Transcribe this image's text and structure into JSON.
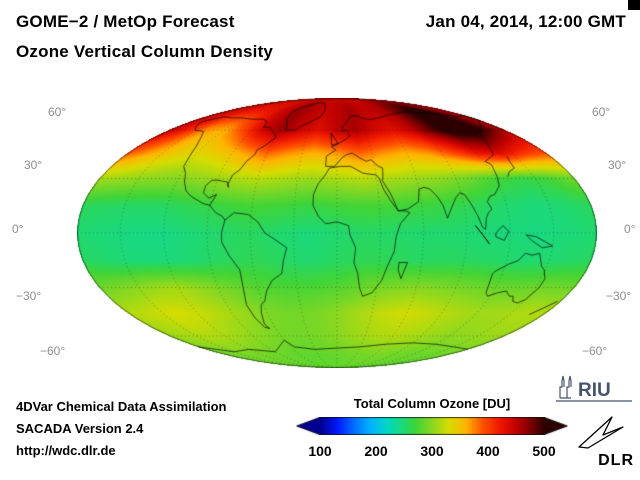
{
  "header": {
    "title_line1": "GOME−2 / MetOp Forecast",
    "title_line2": "Ozone Vertical Column Density",
    "datetime": "Jan 04, 2014, 12:00 GMT"
  },
  "map": {
    "lat_labels": [
      {
        "text": "60°"
      },
      {
        "text": "30°"
      },
      {
        "text": "0°"
      },
      {
        "text": "−30°"
      },
      {
        "text": "−60°"
      }
    ]
  },
  "colorbar": {
    "title": "Total Column Ozone [DU]",
    "ticks": [
      "100",
      "200",
      "300",
      "400",
      "500"
    ]
  },
  "footer": {
    "line1": "4DVar Chemical Data Assimilation",
    "line2": "SACADA Version 2.4",
    "line3": "http://wdc.dlr.de"
  },
  "logos": {
    "riu_text": "RIU",
    "dlr_text": "DLR"
  },
  "chart_data": {
    "type": "heatmap",
    "title": "GOME−2 / MetOp Forecast — Ozone Vertical Column Density",
    "units": "DU",
    "projection": "mollweide",
    "colorbar_label": "Total Column Ozone [DU]",
    "value_range": [
      100,
      500
    ],
    "lat_gridlines_deg": [
      60,
      30,
      0,
      -30,
      -60
    ],
    "colormap": [
      [
        100,
        "#000090"
      ],
      [
        130,
        "#0018ff"
      ],
      [
        160,
        "#0070ff"
      ],
      [
        190,
        "#00b4ff"
      ],
      [
        220,
        "#00d8c0"
      ],
      [
        250,
        "#20d870"
      ],
      [
        270,
        "#40d438"
      ],
      [
        300,
        "#8cd820"
      ],
      [
        330,
        "#d8dc00"
      ],
      [
        360,
        "#ffb400"
      ],
      [
        390,
        "#ff5000"
      ],
      [
        420,
        "#f01800"
      ],
      [
        450,
        "#c00000"
      ],
      [
        475,
        "#7c0000"
      ],
      [
        500,
        "#2c0000"
      ]
    ],
    "grid": {
      "lats": [
        90,
        75,
        60,
        45,
        30,
        15,
        0,
        -15,
        -30,
        -45,
        -60,
        -75,
        -90
      ],
      "lons": [
        -180,
        -160,
        -140,
        -120,
        -100,
        -80,
        -60,
        -40,
        -20,
        0,
        20,
        40,
        60,
        80,
        100,
        120,
        140,
        160,
        180
      ],
      "values": [
        [
          445,
          445,
          445,
          445,
          445,
          445,
          445,
          445,
          445,
          445,
          445,
          445,
          445,
          445,
          445,
          445,
          445,
          445,
          445
        ],
        [
          450,
          435,
          425,
          420,
          430,
          450,
          465,
          455,
          445,
          450,
          460,
          450,
          450,
          460,
          485,
          505,
          505,
          475,
          450
        ],
        [
          450,
          415,
          370,
          360,
          395,
          440,
          465,
          445,
          430,
          450,
          460,
          440,
          430,
          450,
          485,
          515,
          520,
          490,
          450
        ],
        [
          390,
          365,
          345,
          335,
          345,
          365,
          385,
          370,
          360,
          370,
          385,
          370,
          360,
          370,
          395,
          425,
          435,
          405,
          390
        ],
        [
          310,
          305,
          300,
          298,
          304,
          312,
          318,
          312,
          306,
          312,
          318,
          312,
          306,
          300,
          288,
          272,
          264,
          272,
          290
        ],
        [
          258,
          255,
          254,
          256,
          262,
          268,
          272,
          270,
          266,
          270,
          273,
          271,
          268,
          264,
          258,
          250,
          246,
          250,
          258
        ],
        [
          250,
          246,
          243,
          243,
          247,
          252,
          256,
          250,
          246,
          250,
          254,
          252,
          250,
          250,
          248,
          246,
          244,
          246,
          250
        ],
        [
          256,
          250,
          246,
          246,
          250,
          256,
          260,
          255,
          250,
          255,
          260,
          258,
          255,
          256,
          254,
          252,
          250,
          252,
          256
        ],
        [
          288,
          295,
          305,
          310,
          300,
          288,
          278,
          274,
          274,
          278,
          286,
          294,
          298,
          294,
          290,
          286,
          286,
          290,
          288
        ],
        [
          315,
          322,
          330,
          325,
          315,
          305,
          295,
          290,
          292,
          300,
          312,
          322,
          328,
          322,
          315,
          308,
          310,
          315,
          315
        ],
        [
          305,
          310,
          315,
          312,
          305,
          298,
          292,
          290,
          292,
          298,
          306,
          312,
          315,
          312,
          306,
          300,
          302,
          306,
          305
        ],
        [
          288,
          290,
          292,
          290,
          288,
          285,
          283,
          282,
          283,
          285,
          288,
          290,
          292,
          290,
          288,
          286,
          286,
          288,
          288
        ],
        [
          282,
          282,
          282,
          282,
          282,
          282,
          282,
          282,
          282,
          282,
          282,
          282,
          282,
          282,
          282,
          282,
          282,
          282,
          282
        ]
      ]
    },
    "coastlines": [
      [
        [
          -165,
          66
        ],
        [
          -155,
          70
        ],
        [
          -140,
          69
        ],
        [
          -125,
          69
        ],
        [
          -110,
          68
        ],
        [
          -95,
          68
        ],
        [
          -85,
          66
        ],
        [
          -82,
          62
        ],
        [
          -75,
          62
        ],
        [
          -70,
          60
        ],
        [
          -65,
          58
        ],
        [
          -60,
          55
        ],
        [
          -65,
          50
        ],
        [
          -70,
          47
        ],
        [
          -70,
          44
        ],
        [
          -74,
          40
        ],
        [
          -76,
          35
        ],
        [
          -80,
          32
        ],
        [
          -81,
          27
        ],
        [
          -80,
          25
        ],
        [
          -82,
          28
        ],
        [
          -90,
          29
        ],
        [
          -94,
          29
        ],
        [
          -97,
          26
        ],
        [
          -97,
          22
        ],
        [
          -92,
          19
        ],
        [
          -87,
          21
        ],
        [
          -90,
          15
        ],
        [
          -95,
          16
        ],
        [
          -105,
          20
        ],
        [
          -110,
          23
        ],
        [
          -114,
          28
        ],
        [
          -117,
          33
        ],
        [
          -122,
          37
        ],
        [
          -124,
          43
        ],
        [
          -127,
          49
        ],
        [
          -132,
          54
        ],
        [
          -140,
          59
        ],
        [
          -152,
          60
        ],
        [
          -160,
          63
        ],
        [
          -165,
          66
        ]
      ],
      [
        [
          -90,
          15
        ],
        [
          -85,
          11
        ],
        [
          -80,
          9
        ],
        [
          -78,
          7
        ]
      ],
      [
        [
          -55,
          60
        ],
        [
          -45,
          60
        ],
        [
          -40,
          63
        ],
        [
          -30,
          67
        ],
        [
          -22,
          70
        ],
        [
          -20,
          76
        ],
        [
          -30,
          82
        ],
        [
          -45,
          83
        ],
        [
          -58,
          80
        ],
        [
          -68,
          78
        ],
        [
          -70,
          74
        ],
        [
          -65,
          68
        ],
        [
          -58,
          64
        ],
        [
          -55,
          60
        ]
      ],
      [
        [
          -78,
          7
        ],
        [
          -72,
          11
        ],
        [
          -62,
          10
        ],
        [
          -55,
          6
        ],
        [
          -50,
          0
        ],
        [
          -44,
          -3
        ],
        [
          -35,
          -8
        ],
        [
          -38,
          -15
        ],
        [
          -40,
          -22
        ],
        [
          -48,
          -26
        ],
        [
          -54,
          -32
        ],
        [
          -58,
          -38
        ],
        [
          -62,
          -40
        ],
        [
          -65,
          -45
        ],
        [
          -68,
          -52
        ],
        [
          -66,
          -55
        ],
        [
          -70,
          -54
        ],
        [
          -73,
          -48
        ],
        [
          -74,
          -40
        ],
        [
          -71,
          -30
        ],
        [
          -70,
          -20
        ],
        [
          -76,
          -12
        ],
        [
          -80,
          -5
        ],
        [
          -80,
          0
        ],
        [
          -78,
          7
        ]
      ],
      [
        [
          -6,
          36
        ],
        [
          3,
          37
        ],
        [
          11,
          37
        ],
        [
          20,
          33
        ],
        [
          30,
          32
        ],
        [
          32,
          30
        ],
        [
          34,
          24
        ],
        [
          38,
          18
        ],
        [
          43,
          12
        ],
        [
          48,
          12
        ],
        [
          51,
          11
        ],
        [
          44,
          5
        ],
        [
          41,
          -2
        ],
        [
          40,
          -10
        ],
        [
          36,
          -18
        ],
        [
          33,
          -26
        ],
        [
          27,
          -33
        ],
        [
          20,
          -35
        ],
        [
          17,
          -30
        ],
        [
          15,
          -22
        ],
        [
          12,
          -16
        ],
        [
          13,
          -8
        ],
        [
          9,
          -1
        ],
        [
          8,
          4
        ],
        [
          0,
          6
        ],
        [
          -8,
          5
        ],
        [
          -13,
          9
        ],
        [
          -17,
          15
        ],
        [
          -17,
          21
        ],
        [
          -14,
          27
        ],
        [
          -9,
          32
        ],
        [
          -6,
          36
        ]
      ],
      [
        [
          -9,
          43
        ],
        [
          -9,
          37
        ],
        [
          -2,
          37
        ],
        [
          4,
          42
        ],
        [
          8,
          44
        ],
        [
          13,
          45
        ],
        [
          19,
          42
        ],
        [
          24,
          40
        ],
        [
          28,
          41
        ],
        [
          33,
          37
        ],
        [
          36,
          36
        ],
        [
          35,
          31
        ],
        [
          34,
          29
        ],
        [
          39,
          21
        ],
        [
          43,
          12
        ],
        [
          50,
          13
        ],
        [
          58,
          17
        ],
        [
          60,
          24
        ],
        [
          64,
          25
        ],
        [
          68,
          24
        ],
        [
          72,
          20
        ],
        [
          75,
          15
        ],
        [
          77,
          8
        ],
        [
          81,
          14
        ],
        [
          85,
          19
        ],
        [
          89,
          22
        ],
        [
          92,
          21
        ],
        [
          95,
          16
        ],
        [
          98,
          10
        ],
        [
          101,
          3
        ],
        [
          103,
          2
        ],
        [
          104,
          8
        ],
        [
          106,
          11
        ],
        [
          109,
          13
        ],
        [
          107,
          17
        ],
        [
          110,
          20
        ],
        [
          114,
          21
        ],
        [
          120,
          26
        ],
        [
          122,
          31
        ],
        [
          124,
          38
        ],
        [
          121,
          40
        ],
        [
          127,
          42
        ],
        [
          133,
          44
        ],
        [
          137,
          49
        ],
        [
          141,
          53
        ],
        [
          146,
          57
        ],
        [
          152,
          60
        ],
        [
          160,
          62
        ],
        [
          170,
          65
        ],
        [
          179,
          67
        ],
        [
          179,
          71
        ],
        [
          165,
          70
        ],
        [
          150,
          72
        ],
        [
          130,
          73
        ],
        [
          110,
          74
        ],
        [
          90,
          73
        ],
        [
          70,
          71
        ],
        [
          55,
          69
        ],
        [
          45,
          68
        ],
        [
          38,
          68
        ],
        [
          33,
          69
        ],
        [
          25,
          71
        ],
        [
          18,
          70
        ],
        [
          12,
          66
        ],
        [
          6,
          62
        ],
        [
          5,
          59
        ],
        [
          10,
          60
        ],
        [
          13,
          56
        ],
        [
          9,
          54
        ],
        [
          4,
          52
        ],
        [
          -1,
          50
        ],
        [
          -5,
          49
        ],
        [
          -1,
          47
        ],
        [
          -9,
          43
        ]
      ],
      [
        [
          -5,
          50
        ],
        [
          1,
          51
        ],
        [
          -1,
          53
        ],
        [
          -4,
          56
        ],
        [
          -6,
          58
        ],
        [
          -5,
          50
        ]
      ],
      [
        [
          130,
          31
        ],
        [
          134,
          34
        ],
        [
          140,
          36
        ],
        [
          141,
          40
        ],
        [
          143,
          43
        ]
      ],
      [
        [
          113,
          -22
        ],
        [
          115,
          -33
        ],
        [
          118,
          -35
        ],
        [
          124,
          -33
        ],
        [
          130,
          -32
        ],
        [
          135,
          -35
        ],
        [
          138,
          -35
        ],
        [
          141,
          -38
        ],
        [
          146,
          -39
        ],
        [
          150,
          -37
        ],
        [
          153,
          -30
        ],
        [
          153,
          -25
        ],
        [
          149,
          -20
        ],
        [
          146,
          -18
        ],
        [
          142,
          -11
        ],
        [
          137,
          -12
        ],
        [
          132,
          -11
        ],
        [
          128,
          -15
        ],
        [
          122,
          -17
        ],
        [
          114,
          -21
        ],
        [
          113,
          -22
        ]
      ],
      [
        [
          167,
          -46
        ],
        [
          172,
          -42
        ],
        [
          177,
          -38
        ]
      ],
      [
        [
          44,
          -16
        ],
        [
          50,
          -16
        ],
        [
          47,
          -25
        ],
        [
          44,
          -20
        ],
        [
          44,
          -16
        ]
      ],
      [
        [
          110,
          0
        ],
        [
          115,
          4
        ],
        [
          119,
          1
        ],
        [
          116,
          -4
        ],
        [
          110,
          -2
        ],
        [
          110,
          0
        ]
      ],
      [
        [
          96,
          4
        ],
        [
          102,
          -2
        ],
        [
          106,
          -6
        ],
        [
          100,
          0
        ],
        [
          96,
          4
        ]
      ],
      [
        [
          131,
          -1
        ],
        [
          138,
          -2
        ],
        [
          145,
          -5
        ],
        [
          150,
          -7
        ],
        [
          143,
          -8
        ],
        [
          135,
          -4
        ],
        [
          131,
          -1
        ]
      ],
      [
        [
          -179,
          -68
        ],
        [
          -150,
          -72
        ],
        [
          -120,
          -70
        ],
        [
          -90,
          -72
        ],
        [
          -60,
          -63
        ],
        [
          -55,
          -68
        ],
        [
          -30,
          -70
        ],
        [
          0,
          -69
        ],
        [
          30,
          -68
        ],
        [
          60,
          -66
        ],
        [
          90,
          -65
        ],
        [
          120,
          -66
        ],
        [
          150,
          -68
        ],
        [
          179,
          -70
        ]
      ]
    ]
  }
}
